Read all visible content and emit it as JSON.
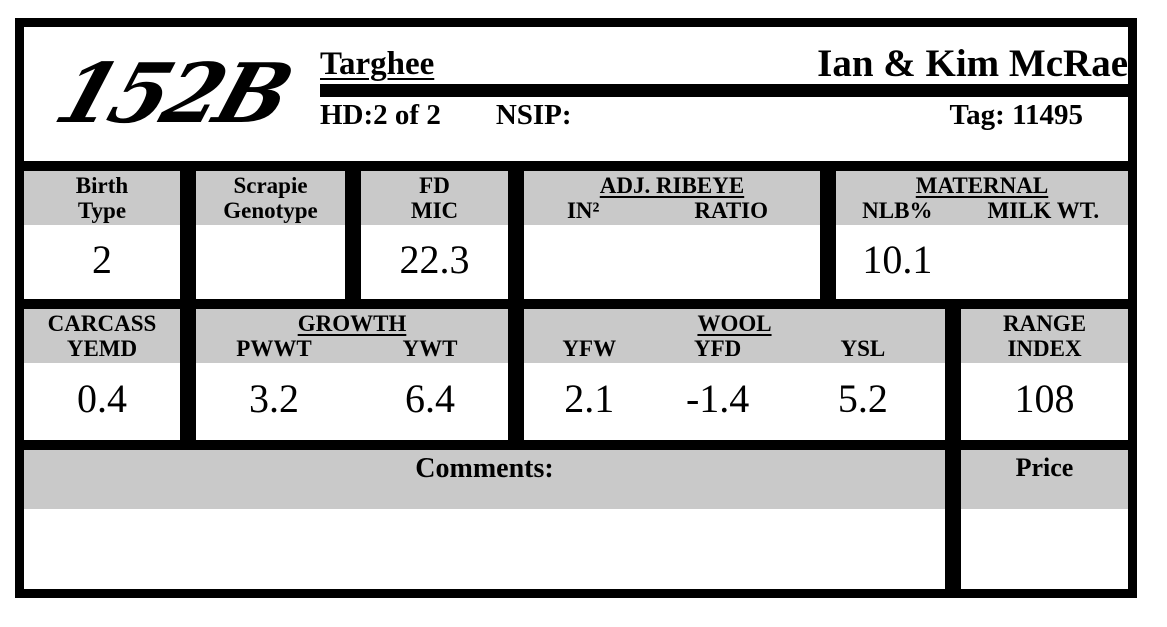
{
  "header": {
    "logo": "152B",
    "breed": "Targhee",
    "owner": "Ian & Kim McRae",
    "head_count": "HD:2 of 2",
    "nsip_label": "NSIP:",
    "tag": "Tag: 11495"
  },
  "row1": {
    "birth_type": {
      "label1": "Birth",
      "label2": "Type",
      "value": "2"
    },
    "scrapie": {
      "label1": "Scrapie",
      "label2": "Genotype",
      "value": ""
    },
    "fd_mic": {
      "label1": "FD",
      "label2": "MIC",
      "value": "22.3"
    },
    "adj_ribeye": {
      "title": "ADJ. RIBEYE",
      "subs": [
        "IN²",
        "RATIO"
      ],
      "values": [
        "",
        ""
      ]
    },
    "maternal": {
      "title": "MATERNAL",
      "subs": [
        "NLB%",
        "MILK WT."
      ],
      "values": [
        "10.1",
        ""
      ]
    }
  },
  "row2": {
    "carcass": {
      "label1": "CARCASS",
      "label2": "YEMD",
      "value": "0.4"
    },
    "growth": {
      "title": "GROWTH",
      "subs": [
        "PWWT",
        "YWT"
      ],
      "values": [
        "3.2",
        "6.4"
      ]
    },
    "wool": {
      "title": "WOOL",
      "subs": [
        "YFW",
        "YFD",
        "YSL"
      ],
      "values": [
        "2.1",
        "-1.4",
        "5.2"
      ]
    },
    "range_index": {
      "label1": "RANGE",
      "label2": "INDEX",
      "value": "108"
    }
  },
  "row3": {
    "comments_label": "Comments:",
    "comments_value": "",
    "price_label": "Price",
    "price_value": ""
  },
  "colors": {
    "band_gray": "#c9c9c9",
    "border_black": "#000000",
    "background": "#ffffff"
  }
}
